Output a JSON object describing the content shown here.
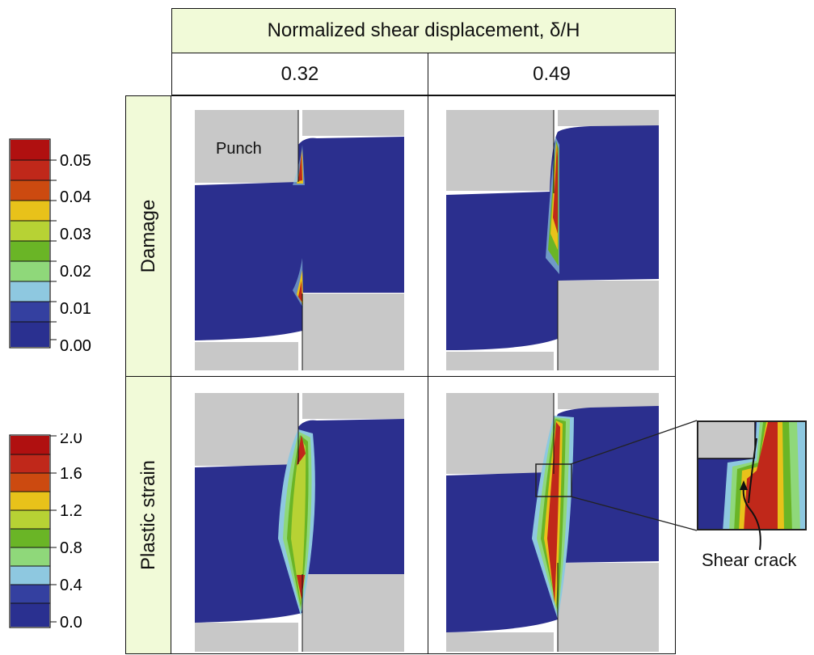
{
  "header": {
    "title": "Normalized shear displacement, δ/H",
    "columns": [
      "0.32",
      "0.49"
    ]
  },
  "rows": [
    "Damage",
    "Plastic strain"
  ],
  "annotations": {
    "punch": "Punch",
    "shear_crack": "Shear crack"
  },
  "legend_damage": {
    "ticks": [
      "0.05",
      "0.04",
      "0.03",
      "0.02",
      "0.01",
      "0.00"
    ],
    "colors": [
      "#b01010",
      "#c83a10",
      "#e8c21a",
      "#b7d234",
      "#6ab526",
      "#55a83a",
      "#8fd87a",
      "#8ec8e0",
      "#3440a0",
      "#2a3090"
    ]
  },
  "legend_strain": {
    "ticks": [
      "2.0",
      "1.6",
      "1.2",
      "0.8",
      "0.4",
      "0.0"
    ],
    "colors": [
      "#b01010",
      "#c83a10",
      "#e8c21a",
      "#b7d234",
      "#6ab526",
      "#55a83a",
      "#8fd87a",
      "#8ec8e0",
      "#3440a0",
      "#2a3090"
    ]
  },
  "palette": {
    "header_bg": "#f1fad8",
    "tool_gray": "#c8c8c8",
    "material_blue": "#2b2f8e"
  }
}
